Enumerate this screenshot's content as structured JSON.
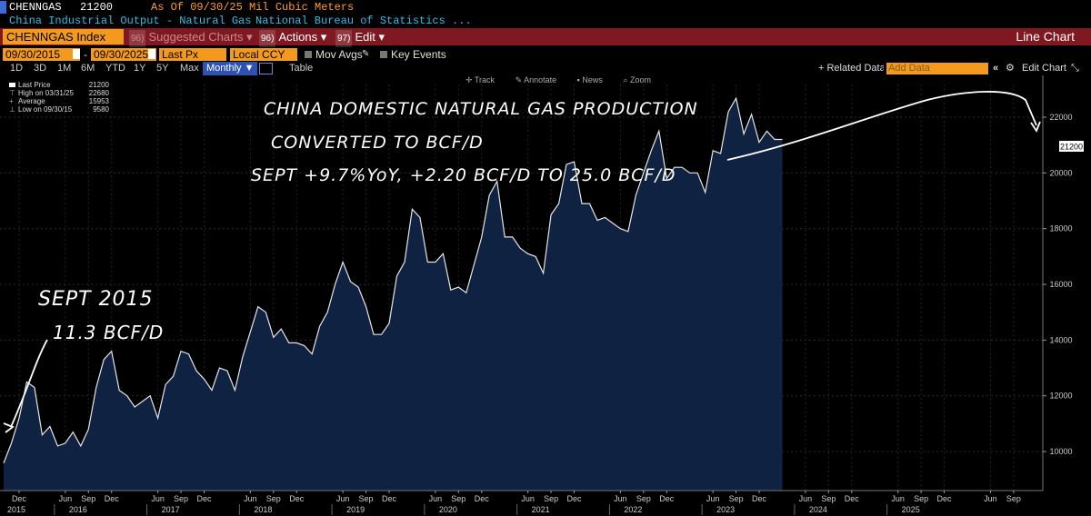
{
  "header": {
    "ticker": "CHENNGAS",
    "price": "21200",
    "as_of": "As Of 09/30/25 Mil Cubic Meters",
    "description": "China Industrial Output - Natural Gas",
    "source": "National Bureau of Statistics ..."
  },
  "menubar": {
    "security": "CHENNGAS Index",
    "suggested_code": "96)",
    "suggested": "Suggested Charts",
    "actions_code": "96)",
    "actions": "Actions",
    "edit_code": "97)",
    "edit": "Edit",
    "chart_type": "Line Chart"
  },
  "options": {
    "start_date": "09/30/2015",
    "end_date": "09/30/2025",
    "dash": "-",
    "field": "Last Px",
    "currency": "Local CCY",
    "mov_avgs": "Mov Avgs",
    "key_events": "Key Events"
  },
  "periods": [
    "1D",
    "3D",
    "1M",
    "6M",
    "YTD",
    "1Y",
    "5Y",
    "Max"
  ],
  "frequency": "Monthly",
  "table_label": "Table",
  "right_tools": {
    "related": "+ Related Data",
    "add_data": "Add Data",
    "edit_chart": "Edit Chart"
  },
  "chart_tools": [
    "Track",
    "Annotate",
    "News",
    "Zoom"
  ],
  "legend": {
    "last_label": "Last Price",
    "last_value": "21200",
    "high_label": "High on 03/31/25",
    "high_value": "22680",
    "avg_label": "Average",
    "avg_value": "15953",
    "low_label": "Low on 09/30/15",
    "low_value": "9580"
  },
  "annotations": {
    "line1": "CHINA DOMESTIC NATURAL GAS PRODUCTION",
    "line2": "CONVERTED TO BCF/D",
    "line3": "SEPT +9.7%YoY, +2.20 BCF/D TO 25.0 BCF/D",
    "start1": "SEPT 2015",
    "start2": "11.3 BCF/D"
  },
  "colors": {
    "accent_orange": "#f39a1e",
    "menubar_red": "#7f1820",
    "area_fill": "#0f2241",
    "line": "#e6e6e6"
  },
  "chart_data": {
    "type": "area",
    "title": "China Industrial Output - Natural Gas",
    "ylabel": "Mil Cubic Meters",
    "ylim": [
      8600,
      23500
    ],
    "yticks": [
      10000,
      12000,
      14000,
      16000,
      18000,
      20000,
      22000
    ],
    "last_value_label": "21200",
    "x_month_labels": [
      "Dec",
      "Jun",
      "Sep",
      "Dec",
      "Jun",
      "Sep",
      "Dec",
      "Jun",
      "Sep",
      "Dec",
      "Jun",
      "Sep",
      "Dec",
      "Jun",
      "Sep",
      "Dec",
      "Jun",
      "Sep",
      "Dec",
      "Jun",
      "Sep",
      "Dec",
      "Jun",
      "Sep",
      "Dec",
      "Jun",
      "Sep",
      "Dec",
      "Jun",
      "Sep",
      "Dec",
      "Jun",
      "Sep"
    ],
    "x_month_label_index": [
      2,
      8,
      11,
      14,
      20,
      23,
      26,
      32,
      35,
      38,
      44,
      47,
      50,
      56,
      59,
      62,
      68,
      71,
      74,
      80,
      83,
      86,
      92,
      95,
      98,
      104,
      107,
      110,
      116,
      119,
      122,
      128,
      131
    ],
    "x_year_labels": [
      "2015",
      "2016",
      "2017",
      "2018",
      "2019",
      "2020",
      "2021",
      "2022",
      "2023",
      "2024",
      "2025"
    ],
    "x_year_label_index": [
      0,
      8,
      20,
      32,
      44,
      56,
      68,
      80,
      92,
      104,
      116
    ],
    "series": [
      {
        "name": "CHENNGAS Index",
        "start": "2015-09",
        "frequency": "monthly",
        "values": [
          9580,
          10300,
          11200,
          12500,
          12300,
          10600,
          10900,
          10200,
          10300,
          10700,
          10200,
          10800,
          12300,
          13300,
          13600,
          12200,
          12000,
          11600,
          11800,
          12000,
          11200,
          12400,
          12700,
          13600,
          13500,
          12900,
          12600,
          12200,
          13000,
          12900,
          12200,
          13400,
          14300,
          15200,
          15000,
          14100,
          14400,
          13900,
          13900,
          13800,
          13500,
          14500,
          15000,
          16000,
          16800,
          16100,
          15900,
          15200,
          14200,
          14200,
          14600,
          16300,
          16800,
          18700,
          18400,
          16800,
          16800,
          17100,
          15800,
          15900,
          15700,
          16700,
          17700,
          19200,
          19700,
          17700,
          17700,
          17300,
          17100,
          17000,
          16400,
          18500,
          18900,
          20300,
          20400,
          18900,
          18900,
          18300,
          18400,
          18200,
          18000,
          17900,
          19200,
          20000,
          20800,
          21500,
          19800,
          20200,
          20200,
          20000,
          20000,
          19300,
          20800,
          20700,
          22200,
          22680,
          21400,
          22100,
          21100,
          21500,
          21200,
          21200
        ]
      }
    ]
  }
}
